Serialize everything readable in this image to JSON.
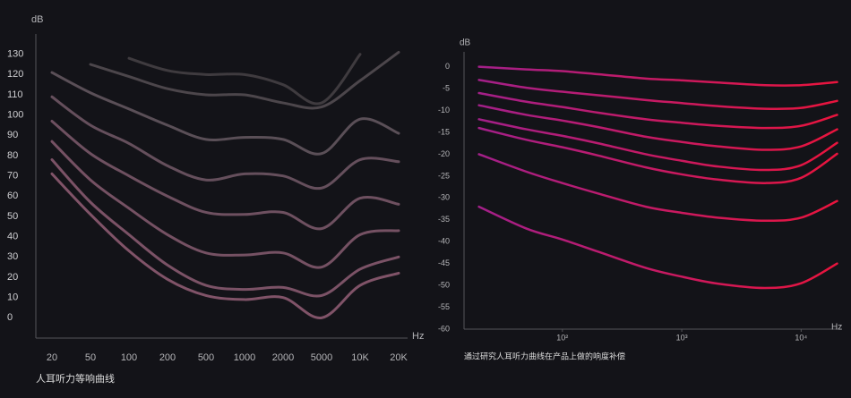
{
  "chart_data": [
    {
      "type": "line",
      "y_label": "dB",
      "x_label": "Hz",
      "caption": "人耳听力等响曲线",
      "categories": [
        "20",
        "50",
        "100",
        "200",
        "500",
        "1000",
        "2000",
        "5000",
        "10K",
        "20K"
      ],
      "ylim": [
        -10,
        140
      ],
      "yticks": [
        0,
        10,
        20,
        30,
        40,
        50,
        60,
        70,
        80,
        90,
        100,
        110,
        120,
        130
      ],
      "series": [
        {
          "color": "#3f3b3f",
          "values": [
            null,
            null,
            128,
            122,
            120,
            120,
            115,
            106,
            130,
            null
          ]
        },
        {
          "color": "#4c464b",
          "values": [
            null,
            125,
            119,
            113,
            110,
            110,
            106,
            104,
            117,
            131
          ]
        },
        {
          "color": "#5a4f57",
          "values": [
            121,
            111,
            103,
            95,
            88,
            89,
            88,
            81,
            98,
            91
          ]
        },
        {
          "color": "#654f5c",
          "values": [
            109,
            95,
            86,
            75,
            68,
            71,
            70,
            64,
            78,
            77
          ]
        },
        {
          "color": "#6e5060",
          "values": [
            97,
            81,
            70,
            60,
            52,
            51,
            52,
            44,
            59,
            56
          ]
        },
        {
          "color": "#755163",
          "values": [
            87,
            68,
            54,
            41,
            32,
            31,
            32,
            25,
            41,
            43
          ]
        },
        {
          "color": "#7b5266",
          "values": [
            78,
            57,
            41,
            26,
            16,
            14,
            15,
            11,
            24,
            30
          ]
        },
        {
          "color": "#805368",
          "values": [
            71,
            51,
            33,
            19,
            11,
            9,
            10,
            0,
            16,
            22
          ]
        }
      ]
    },
    {
      "type": "line",
      "y_label": "dB",
      "x_label": "Hz",
      "caption": "通过研究人耳听力曲线在产品上做的响度补偿",
      "log_x": true,
      "gradient": [
        "#a0208c",
        "#ea143c"
      ],
      "x": [
        20,
        50,
        100,
        200,
        500,
        1000,
        2000,
        5000,
        10000,
        20000
      ],
      "xlim": [
        15,
        22000
      ],
      "xticks": [
        {
          "value": 100,
          "label": "10²"
        },
        {
          "value": 1000,
          "label": "10³"
        },
        {
          "value": 10000,
          "label": "10⁴"
        }
      ],
      "ylim": [
        -60,
        3
      ],
      "yticks": [
        0,
        -5,
        -10,
        -15,
        -20,
        -25,
        -30,
        -35,
        -40,
        -45,
        -50,
        -55,
        -60
      ],
      "series": [
        {
          "values": [
            0,
            -0.6,
            -1,
            -1.7,
            -2.7,
            -3.1,
            -3.6,
            -4.2,
            -4.2,
            -3.5
          ]
        },
        {
          "values": [
            -3,
            -4.8,
            -5.7,
            -6.5,
            -7.6,
            -8.3,
            -9,
            -9.6,
            -9.4,
            -7.8
          ]
        },
        {
          "values": [
            -6,
            -8,
            -9.2,
            -10.5,
            -12,
            -12.8,
            -13.5,
            -14,
            -13.5,
            -11
          ]
        },
        {
          "values": [
            -8.8,
            -11,
            -12.3,
            -13.8,
            -16,
            -17.2,
            -18.2,
            -19,
            -18.2,
            -14.3
          ]
        },
        {
          "values": [
            -12,
            -14.3,
            -15.8,
            -17.5,
            -20,
            -21.5,
            -22.8,
            -23.6,
            -22.5,
            -17.4
          ]
        },
        {
          "values": [
            -14,
            -16.7,
            -18.4,
            -20.3,
            -23,
            -24.6,
            -25.8,
            -26.6,
            -25.4,
            -19.9
          ]
        },
        {
          "values": [
            -20,
            -24,
            -26.6,
            -29,
            -32,
            -33.4,
            -34.5,
            -35.2,
            -34.5,
            -30.7
          ]
        },
        {
          "values": [
            -32,
            -37,
            -39.5,
            -42.3,
            -46,
            -48,
            -49.6,
            -50.6,
            -49.5,
            -45
          ]
        }
      ]
    }
  ]
}
